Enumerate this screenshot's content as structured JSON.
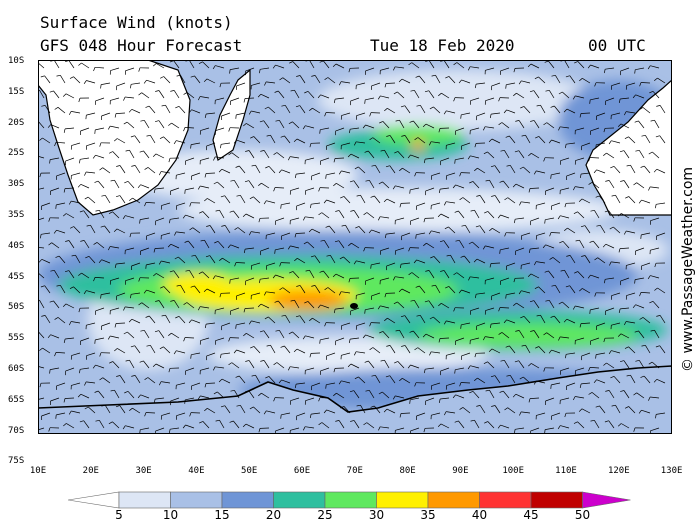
{
  "header": {
    "title": "Surface Wind (knots)",
    "forecast": "GFS 048 Hour Forecast",
    "date": "Tue 18 Feb 2020",
    "time": "00 UTC"
  },
  "axes": {
    "latitudes": [
      "10S",
      "15S",
      "20S",
      "25S",
      "30S",
      "35S",
      "40S",
      "45S",
      "50S",
      "55S",
      "60S",
      "65S",
      "70S",
      "75S"
    ],
    "longitudes": [
      "10E",
      "20E",
      "30E",
      "40E",
      "50E",
      "60E",
      "70E",
      "80E",
      "90E",
      "100E",
      "110E",
      "120E",
      "130E"
    ]
  },
  "credit": "© www.PassageWeather.com",
  "legend": {
    "labels": [
      "5",
      "10",
      "15",
      "20",
      "25",
      "30",
      "35",
      "40",
      "45",
      "50"
    ],
    "colors": [
      "#ffffff",
      "#dde6f5",
      "#a9c0e6",
      "#6f95d6",
      "#2fbf9f",
      "#5fe85f",
      "#fff000",
      "#ff9900",
      "#ff3333",
      "#c00000",
      "#cc00cc"
    ]
  },
  "colors": {
    "land": "#ffffff",
    "calm": "#e6edf8",
    "light": "#a9c0e6",
    "moderate": "#6f95d6",
    "fresh": "#2fbf9f",
    "strong": "#5fe85f",
    "gale": "#fff000",
    "severe": "#ff9900",
    "storm": "#ff3333"
  }
}
